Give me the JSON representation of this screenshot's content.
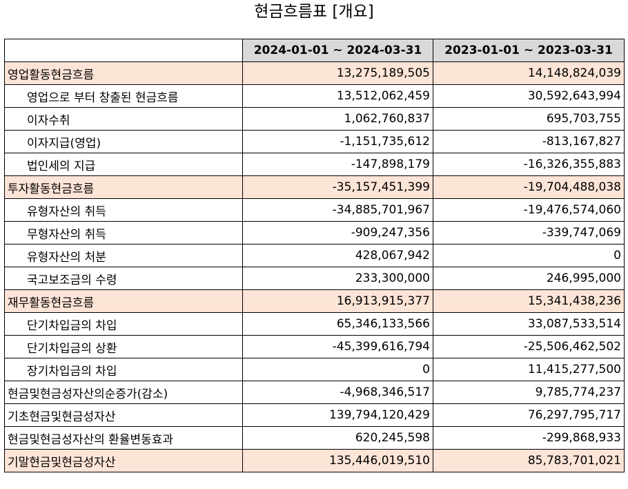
{
  "title": "현금흐름표 [개요]",
  "headers": [
    "",
    "2024-01-01 ~ 2024-03-31",
    "2023-01-01 ~ 2023-03-31"
  ],
  "rows": [
    {
      "label": "영업활동현금흐름",
      "v1": "13,275,189,505",
      "v2": "14,148,824,039",
      "highlight": true,
      "indent": false
    },
    {
      "label": "영업으로 부터 창출된 현금흐름",
      "v1": "13,512,062,459",
      "v2": "30,592,643,994",
      "highlight": false,
      "indent": true
    },
    {
      "label": "이자수취",
      "v1": "1,062,760,837",
      "v2": "695,703,755",
      "highlight": false,
      "indent": true
    },
    {
      "label": "이자지급(영업)",
      "v1": "-1,151,735,612",
      "v2": "-813,167,827",
      "highlight": false,
      "indent": true
    },
    {
      "label": "법인세의 지급",
      "v1": "-147,898,179",
      "v2": "-16,326,355,883",
      "highlight": false,
      "indent": true
    },
    {
      "label": "투자활동현금흐름",
      "v1": "-35,157,451,399",
      "v2": "-19,704,488,038",
      "highlight": true,
      "indent": false
    },
    {
      "label": "유형자산의 취득",
      "v1": "-34,885,701,967",
      "v2": "-19,476,574,060",
      "highlight": false,
      "indent": true
    },
    {
      "label": "무형자산의 취득",
      "v1": "-909,247,356",
      "v2": "-339,747,069",
      "highlight": false,
      "indent": true
    },
    {
      "label": "유형자산의 처분",
      "v1": "428,067,942",
      "v2": "0",
      "highlight": false,
      "indent": true
    },
    {
      "label": "국고보조금의 수령",
      "v1": "233,300,000",
      "v2": "246,995,000",
      "highlight": false,
      "indent": true
    },
    {
      "label": "재무활동현금흐름",
      "v1": "16,913,915,377",
      "v2": "15,341,438,236",
      "highlight": true,
      "indent": false
    },
    {
      "label": "단기차입금의 차입",
      "v1": "65,346,133,566",
      "v2": "33,087,533,514",
      "highlight": false,
      "indent": true
    },
    {
      "label": "단기차입금의 상환",
      "v1": "-45,399,616,794",
      "v2": "-25,506,462,502",
      "highlight": false,
      "indent": true
    },
    {
      "label": "장기차입금의 차입",
      "v1": "0",
      "v2": "11,415,277,500",
      "highlight": false,
      "indent": true
    },
    {
      "label": "현금및현금성자산의순증가(감소)",
      "v1": "-4,968,346,517",
      "v2": "9,785,774,237",
      "highlight": false,
      "indent": false
    },
    {
      "label": "기초현금및현금성자산",
      "v1": "139,794,120,429",
      "v2": "76,297,795,717",
      "highlight": false,
      "indent": false
    },
    {
      "label": "현금및현금성자산의 환율변동효과",
      "v1": "620,245,598",
      "v2": "-299,868,933",
      "highlight": false,
      "indent": false
    },
    {
      "label": "기말현금및현금성자산",
      "v1": "135,446,019,510",
      "v2": "85,783,701,021",
      "highlight": true,
      "indent": false
    }
  ],
  "colors": {
    "header_bg": "#d9d9d9",
    "highlight_bg": "#fce4d6",
    "border": "#000000"
  }
}
